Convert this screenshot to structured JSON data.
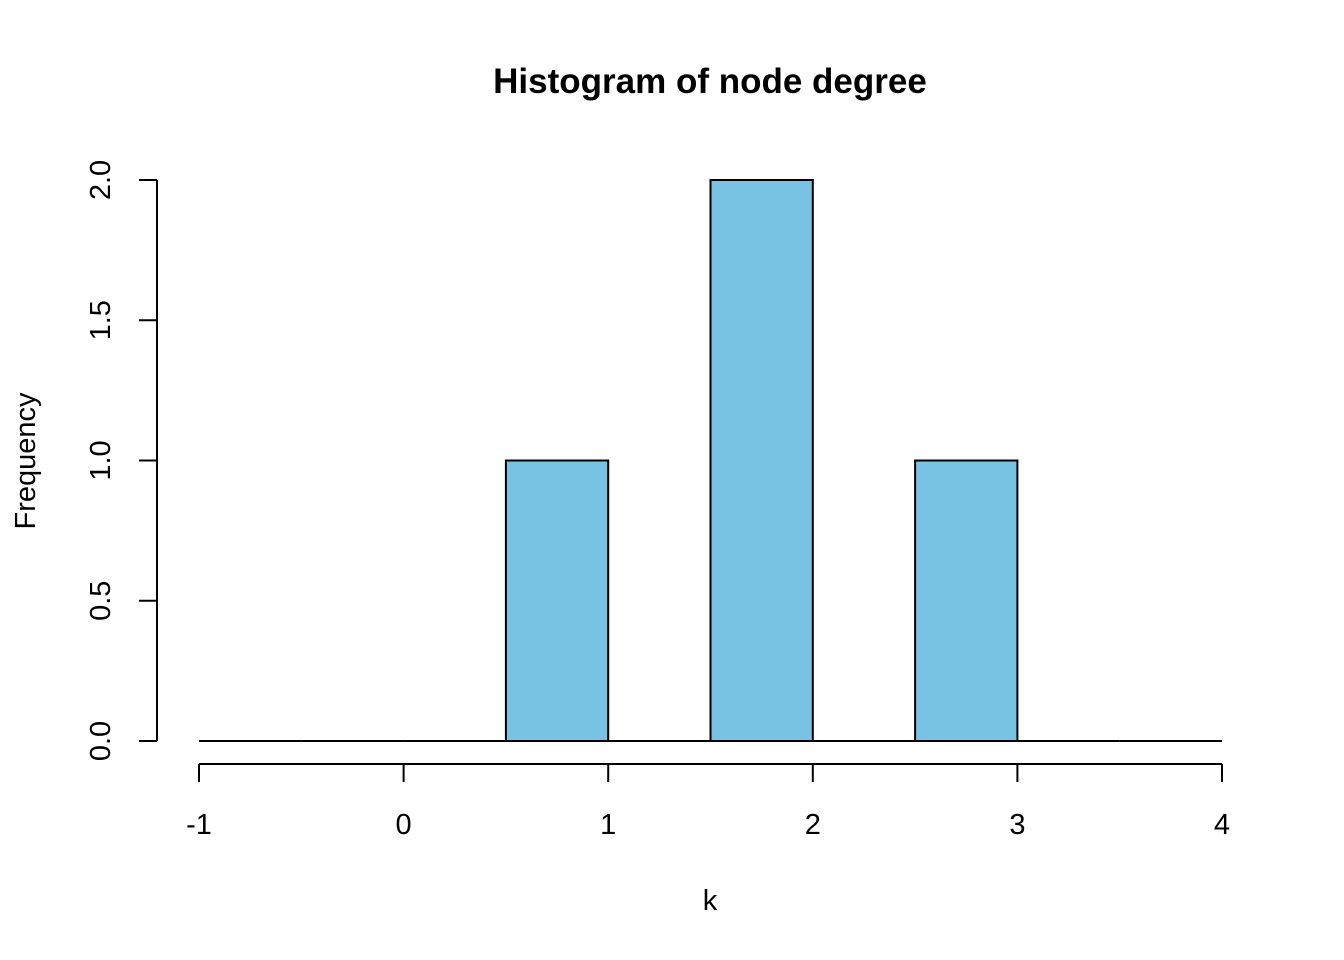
{
  "chart_data": {
    "type": "bar",
    "title": "Histogram of node degree",
    "xlabel": "k",
    "ylabel": "Frequency",
    "bins": [
      {
        "start": -1.0,
        "end": -0.5,
        "value": 0
      },
      {
        "start": -0.5,
        "end": 0.0,
        "value": 0
      },
      {
        "start": 0.0,
        "end": 0.5,
        "value": 0
      },
      {
        "start": 0.5,
        "end": 1.0,
        "value": 1
      },
      {
        "start": 1.0,
        "end": 1.5,
        "value": 0
      },
      {
        "start": 1.5,
        "end": 2.0,
        "value": 2
      },
      {
        "start": 2.0,
        "end": 2.5,
        "value": 0
      },
      {
        "start": 2.5,
        "end": 3.0,
        "value": 1
      },
      {
        "start": 3.0,
        "end": 3.5,
        "value": 0
      },
      {
        "start": 3.5,
        "end": 4.0,
        "value": 0
      }
    ],
    "xlim": [
      -1,
      4
    ],
    "ylim": [
      0,
      2
    ],
    "xticks": [
      -1,
      0,
      1,
      2,
      3,
      4
    ],
    "xtick_labels": [
      "-1",
      "0",
      "1",
      "2",
      "3",
      "4"
    ],
    "yticks": [
      0,
      0.5,
      1,
      1.5,
      2
    ],
    "ytick_labels": [
      "0.0",
      "0.5",
      "1.0",
      "1.5",
      "2.0"
    ],
    "grid": false,
    "bar_color": "#78c2e4",
    "edge_color": "#000000"
  }
}
